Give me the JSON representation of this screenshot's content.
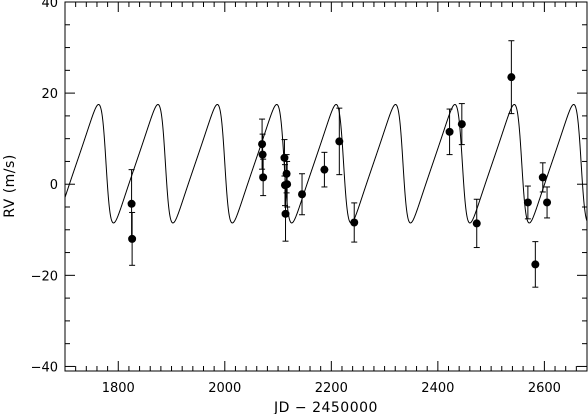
{
  "chart_data": {
    "type": "scatter",
    "xlabel": "JD − 2450000",
    "ylabel": "RV (m/s)",
    "xlim": [
      1700,
      2680
    ],
    "ylim": [
      -41,
      40
    ],
    "x_major_ticks": [
      1800,
      2000,
      2200,
      2400,
      2600
    ],
    "x_minor_step": 20,
    "y_major_ticks": [
      -40,
      -20,
      0,
      20,
      40
    ],
    "y_minor_step": 5,
    "grid": false,
    "legend": "none",
    "series": [
      {
        "kind": "points_with_errors",
        "points": [
          {
            "x": 1825,
            "y": -4.3,
            "err": 7.5
          },
          {
            "x": 1826,
            "y": -12.0,
            "err": 5.8
          },
          {
            "x": 2070,
            "y": 8.8,
            "err": 5.5
          },
          {
            "x": 2071,
            "y": 6.5,
            "err": 4.5
          },
          {
            "x": 2072,
            "y": 1.5,
            "err": 4.0
          },
          {
            "x": 2112,
            "y": 5.8,
            "err": 4.0
          },
          {
            "x": 2113,
            "y": -0.2,
            "err": 4.5
          },
          {
            "x": 2114,
            "y": -6.5,
            "err": 6.0
          },
          {
            "x": 2116,
            "y": 2.3,
            "err": 4.2
          },
          {
            "x": 2117,
            "y": 0.0,
            "err": 5.0
          },
          {
            "x": 2145,
            "y": -2.2,
            "err": 4.5
          },
          {
            "x": 2187,
            "y": 3.2,
            "err": 3.8
          },
          {
            "x": 2215,
            "y": 9.4,
            "err": 7.3
          },
          {
            "x": 2243,
            "y": -8.4,
            "err": 4.3
          },
          {
            "x": 2422,
            "y": 11.5,
            "err": 5.0
          },
          {
            "x": 2445,
            "y": 13.2,
            "err": 4.5
          },
          {
            "x": 2473,
            "y": -8.6,
            "err": 5.3
          },
          {
            "x": 2538,
            "y": 23.5,
            "err": 8.0
          },
          {
            "x": 2569,
            "y": -4.0,
            "err": 3.6
          },
          {
            "x": 2583,
            "y": -17.6,
            "err": 5.0
          },
          {
            "x": 2597,
            "y": 1.5,
            "err": 3.2
          },
          {
            "x": 2605,
            "y": -4.0,
            "err": 3.4
          }
        ]
      },
      {
        "kind": "model_curve",
        "period": 111.5,
        "peak_epoch": 1763,
        "amplitude": 13.0,
        "eccentricity": 0.4,
        "omega_deg": 90,
        "offset": 4.5
      }
    ]
  }
}
